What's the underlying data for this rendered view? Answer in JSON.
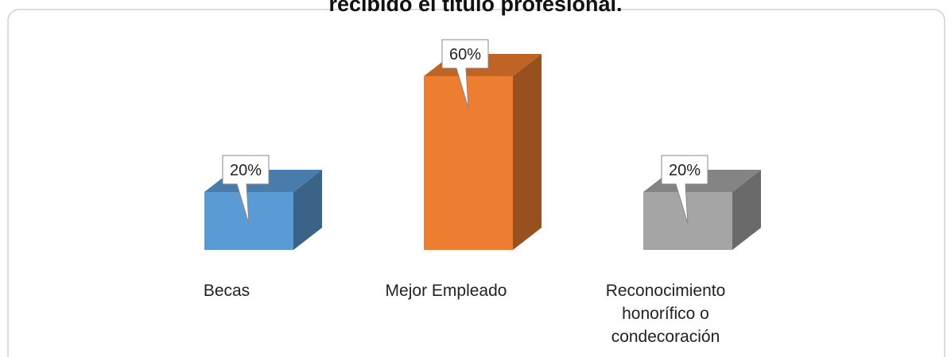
{
  "chart_data": {
    "type": "bar3d",
    "title": "recibido el título profesional.",
    "categories": [
      "Becas",
      "Mejor Empleado",
      "Reconocimiento honorífico o condecoración"
    ],
    "values": [
      20,
      60,
      20
    ],
    "value_labels": [
      "20%",
      "60%",
      "20%"
    ],
    "colors": [
      "#5b9bd5",
      "#ed7d31",
      "#a5a5a5"
    ]
  }
}
